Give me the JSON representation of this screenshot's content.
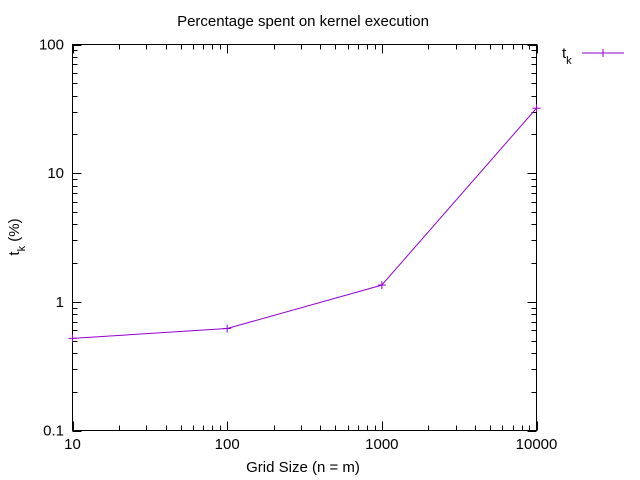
{
  "chart_data": {
    "type": "line",
    "title": "Percentage spent on kernel execution",
    "xlabel": "Grid Size (n = m)",
    "ylabel": {
      "main": "t",
      "sub": "k",
      "suffix": " (%)"
    },
    "xscale": "log",
    "yscale": "log",
    "xlim": [
      10,
      10000
    ],
    "ylim": [
      0.1,
      100
    ],
    "x_ticks": [
      10,
      100,
      1000,
      10000
    ],
    "x_tick_labels": [
      "10",
      "100",
      "1000",
      "10000"
    ],
    "y_ticks": [
      0.1,
      1,
      10,
      100
    ],
    "y_tick_labels": [
      "0.1",
      "1",
      "10",
      "100"
    ],
    "grid": false,
    "legend_position": "top-right, outside plot",
    "series": [
      {
        "name": {
          "main": "t",
          "sub": "k"
        },
        "color": "#9400d3",
        "marker": "plus",
        "x": [
          10,
          100,
          1000,
          10000
        ],
        "y": [
          0.52,
          0.62,
          1.35,
          32
        ]
      }
    ]
  }
}
